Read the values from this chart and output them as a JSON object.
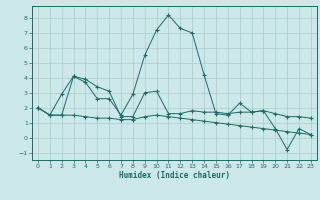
{
  "title": "",
  "xlabel": "Humidex (Indice chaleur)",
  "ylabel": "",
  "xlim": [
    -0.5,
    23.5
  ],
  "ylim": [
    -1.5,
    8.8
  ],
  "yticks": [
    -1,
    0,
    1,
    2,
    3,
    4,
    5,
    6,
    7,
    8
  ],
  "xticks": [
    0,
    1,
    2,
    3,
    4,
    5,
    6,
    7,
    8,
    9,
    10,
    11,
    12,
    13,
    14,
    15,
    16,
    17,
    18,
    19,
    20,
    21,
    22,
    23
  ],
  "background_color": "#cce8e8",
  "line_color": "#1a6b6b",
  "grid_color": "#aacccc",
  "line1_x": [
    0,
    1,
    2,
    3,
    4,
    5,
    6,
    7,
    8,
    9,
    10,
    11,
    12,
    13,
    14,
    15,
    16,
    17,
    18,
    19,
    20,
    21,
    22,
    23
  ],
  "line1_y": [
    2.0,
    1.5,
    2.9,
    4.1,
    3.7,
    2.6,
    2.6,
    1.5,
    2.9,
    5.5,
    7.2,
    8.2,
    7.3,
    7.0,
    4.2,
    1.6,
    1.5,
    2.3,
    1.7,
    1.8,
    0.6,
    -0.8,
    0.6,
    0.2
  ],
  "line2_x": [
    0,
    1,
    2,
    3,
    4,
    5,
    6,
    7,
    8,
    9,
    10,
    11,
    12,
    13,
    14,
    15,
    16,
    17,
    18,
    19,
    20,
    21,
    22,
    23
  ],
  "line2_y": [
    2.0,
    1.5,
    1.5,
    4.1,
    3.9,
    3.4,
    3.1,
    1.4,
    1.4,
    3.0,
    3.1,
    1.6,
    1.6,
    1.8,
    1.7,
    1.7,
    1.6,
    1.7,
    1.7,
    1.8,
    1.6,
    1.4,
    1.4,
    1.3
  ],
  "line3_x": [
    0,
    1,
    2,
    3,
    4,
    5,
    6,
    7,
    8,
    9,
    10,
    11,
    12,
    13,
    14,
    15,
    16,
    17,
    18,
    19,
    20,
    21,
    22,
    23
  ],
  "line3_y": [
    2.0,
    1.5,
    1.5,
    1.5,
    1.4,
    1.3,
    1.3,
    1.2,
    1.2,
    1.4,
    1.5,
    1.4,
    1.3,
    1.2,
    1.1,
    1.0,
    0.9,
    0.8,
    0.7,
    0.6,
    0.5,
    0.4,
    0.3,
    0.2
  ]
}
